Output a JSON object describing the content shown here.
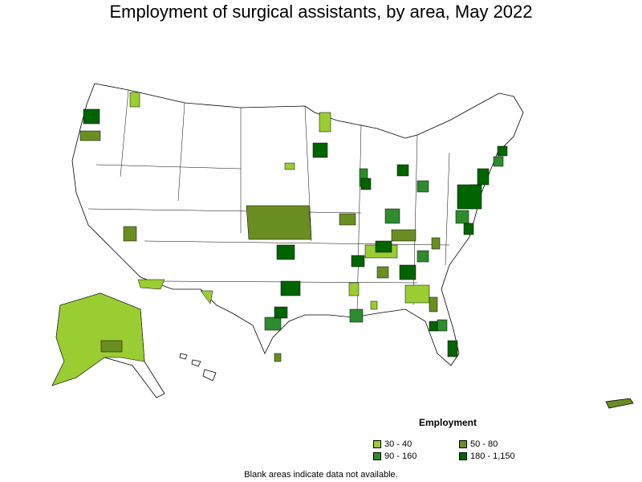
{
  "title": "Employment of surgical assistants, by area, May 2022",
  "legend": {
    "title": "Employment",
    "items": [
      {
        "label": "30 - 40",
        "color": "#9acd32"
      },
      {
        "label": "50 - 80",
        "color": "#6b8e23"
      },
      {
        "label": "90 - 160",
        "color": "#2e8b2e"
      },
      {
        "label": "180 - 1,150",
        "color": "#006400"
      }
    ]
  },
  "footnote": "Blank areas indicate data not available."
}
